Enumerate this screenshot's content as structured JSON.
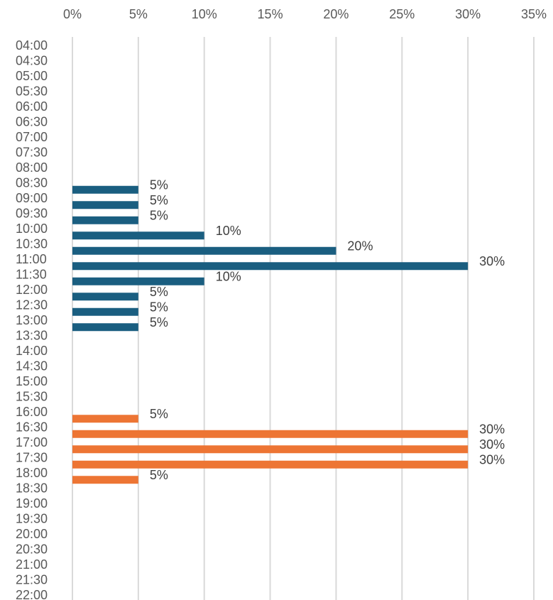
{
  "chart_data": {
    "type": "bar",
    "orientation": "horizontal",
    "title": "",
    "xlabel": "",
    "ylabel": "",
    "xlim": [
      0,
      35
    ],
    "x_ticks": [
      "0%",
      "5%",
      "10%",
      "15%",
      "20%",
      "25%",
      "30%",
      "35%"
    ],
    "x_axis_position": "top",
    "grid": true,
    "legend": "none",
    "categories": [
      "04:00",
      "04:30",
      "05:00",
      "05:30",
      "06:00",
      "06:30",
      "07:00",
      "07:30",
      "08:00",
      "08:30",
      "09:00",
      "09:30",
      "10:00",
      "10:30",
      "11:00",
      "11:30",
      "12:00",
      "12:30",
      "13:00",
      "13:30",
      "14:00",
      "14:30",
      "15:00",
      "15:30",
      "16:00",
      "16:30",
      "17:00",
      "17:30",
      "18:00",
      "18:30",
      "19:00",
      "19:30",
      "20:00",
      "20:30",
      "21:00",
      "21:30",
      "22:00"
    ],
    "series": [
      {
        "color": "#1a5e80",
        "bars": [
          {
            "category": "08:30",
            "value": 5,
            "label": "5%"
          },
          {
            "category": "09:00",
            "value": 5,
            "label": "5%"
          },
          {
            "category": "09:30",
            "value": 5,
            "label": "5%"
          },
          {
            "category": "10:00",
            "value": 10,
            "label": "10%"
          },
          {
            "category": "10:30",
            "value": 20,
            "label": "20%"
          },
          {
            "category": "11:00",
            "value": 30,
            "label": "30%"
          },
          {
            "category": "11:30",
            "value": 10,
            "label": "10%"
          },
          {
            "category": "12:00",
            "value": 5,
            "label": "5%"
          },
          {
            "category": "12:30",
            "value": 5,
            "label": "5%"
          },
          {
            "category": "13:00",
            "value": 5,
            "label": "5%"
          }
        ]
      },
      {
        "color": "#ed7534",
        "bars": [
          {
            "category": "16:00",
            "value": 5,
            "label": "5%"
          },
          {
            "category": "16:30",
            "value": 30,
            "label": "30%"
          },
          {
            "category": "17:00",
            "value": 30,
            "label": "30%"
          },
          {
            "category": "17:30",
            "value": 30,
            "label": "30%"
          },
          {
            "category": "18:00",
            "value": 5,
            "label": "5%"
          }
        ]
      }
    ]
  }
}
